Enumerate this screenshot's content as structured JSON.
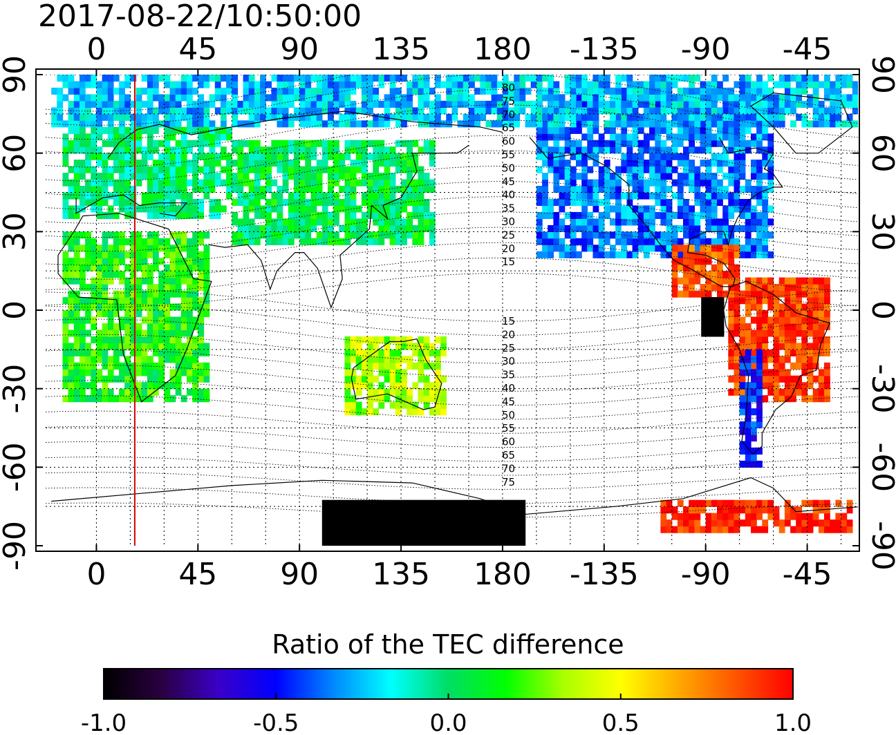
{
  "timestamp": "2017-08-22/10:50:00",
  "colorbar_title": "Ratio of the TEC difference",
  "chart_data": {
    "type": "heatmap",
    "title": "2017-08-22/10:50:00",
    "projection": "equirectangular, centered on 180",
    "x_range_deg": [
      -22.5,
      337.5
    ],
    "y_range_deg": [
      -90,
      90
    ],
    "x_ticks": [
      {
        "lon": 0,
        "label": "0"
      },
      {
        "lon": 45,
        "label": "45"
      },
      {
        "lon": 90,
        "label": "90"
      },
      {
        "lon": 135,
        "label": "135"
      },
      {
        "lon": 180,
        "label": "180"
      },
      {
        "lon": 225,
        "label": "-135"
      },
      {
        "lon": 270,
        "label": "-90"
      },
      {
        "lon": 315,
        "label": "-45"
      }
    ],
    "y_ticks": [
      {
        "lat": 90,
        "label": "90"
      },
      {
        "lat": 60,
        "label": "60"
      },
      {
        "lat": 30,
        "label": "30"
      },
      {
        "lat": 0,
        "label": "0"
      },
      {
        "lat": -30,
        "label": "-30"
      },
      {
        "lat": -60,
        "label": "-60"
      },
      {
        "lat": -90,
        "label": "-90"
      }
    ],
    "terminator_lon": 17,
    "terminator_color": "#d40000",
    "obscuration_labels_north": [
      "80",
      "75",
      "70",
      "65",
      "60",
      "55",
      "50",
      "45",
      "40",
      "35",
      "30",
      "25",
      "20",
      "15"
    ],
    "obscuration_labels_south": [
      "15",
      "20",
      "25",
      "30",
      "35",
      "40",
      "45",
      "50",
      "55",
      "60",
      "65",
      "70",
      "75"
    ],
    "colorbar": {
      "range": [
        -1.0,
        1.0
      ],
      "tick_labels": [
        "-1.0",
        "-0.5",
        "0.0",
        "0.5",
        "1.0"
      ],
      "tick_values": [
        -1.0,
        -0.5,
        0.0,
        0.5,
        1.0
      ],
      "colors": [
        "#000000",
        "#2a0040",
        "#3a00c8",
        "#0000ff",
        "#0088ff",
        "#00ffff",
        "#00dd66",
        "#00ff00",
        "#aaff00",
        "#ffff00",
        "#ffaa00",
        "#ff5500",
        "#ff0000"
      ]
    },
    "regions": [
      {
        "name": "north-america",
        "lon0": 195,
        "lon1": 300,
        "lat0": 20,
        "lat1": 85,
        "value": -0.35
      },
      {
        "name": "arctic",
        "lon0": -20,
        "lon1": 340,
        "lat0": 70,
        "lat1": 88,
        "value": -0.25
      },
      {
        "name": "europe",
        "lon0": -15,
        "lon1": 60,
        "lat0": 35,
        "lat1": 70,
        "value": 0.0
      },
      {
        "name": "asia",
        "lon0": 60,
        "lon1": 150,
        "lat0": 25,
        "lat1": 65,
        "value": 0.05
      },
      {
        "name": "africa",
        "lon0": -15,
        "lon1": 50,
        "lat0": -35,
        "lat1": 30,
        "value": 0.15
      },
      {
        "name": "australia",
        "lon0": 110,
        "lon1": 155,
        "lat0": -40,
        "lat1": -12,
        "value": 0.35
      },
      {
        "name": "south-america",
        "lon0": 280,
        "lon1": 325,
        "lat0": -35,
        "lat1": 12,
        "value": 0.9
      },
      {
        "name": "central-america",
        "lon0": 255,
        "lon1": 285,
        "lat0": 5,
        "lat1": 25,
        "value": 0.85
      },
      {
        "name": "chile-coast",
        "lon0": 285,
        "lon1": 295,
        "lat0": -60,
        "lat1": -15,
        "value": -0.5
      },
      {
        "name": "antarctic-dark",
        "lon0": 100,
        "lon1": 190,
        "lat0": -90,
        "lat1": -73,
        "value": -1.0
      },
      {
        "name": "antarctic-red",
        "lon0": 250,
        "lon1": 335,
        "lat0": -85,
        "lat1": -74,
        "value": 0.95
      },
      {
        "name": "west-eclipse-core",
        "lon0": 268,
        "lon1": 278,
        "lat0": -10,
        "lat1": 5,
        "value": -1.0
      }
    ]
  }
}
